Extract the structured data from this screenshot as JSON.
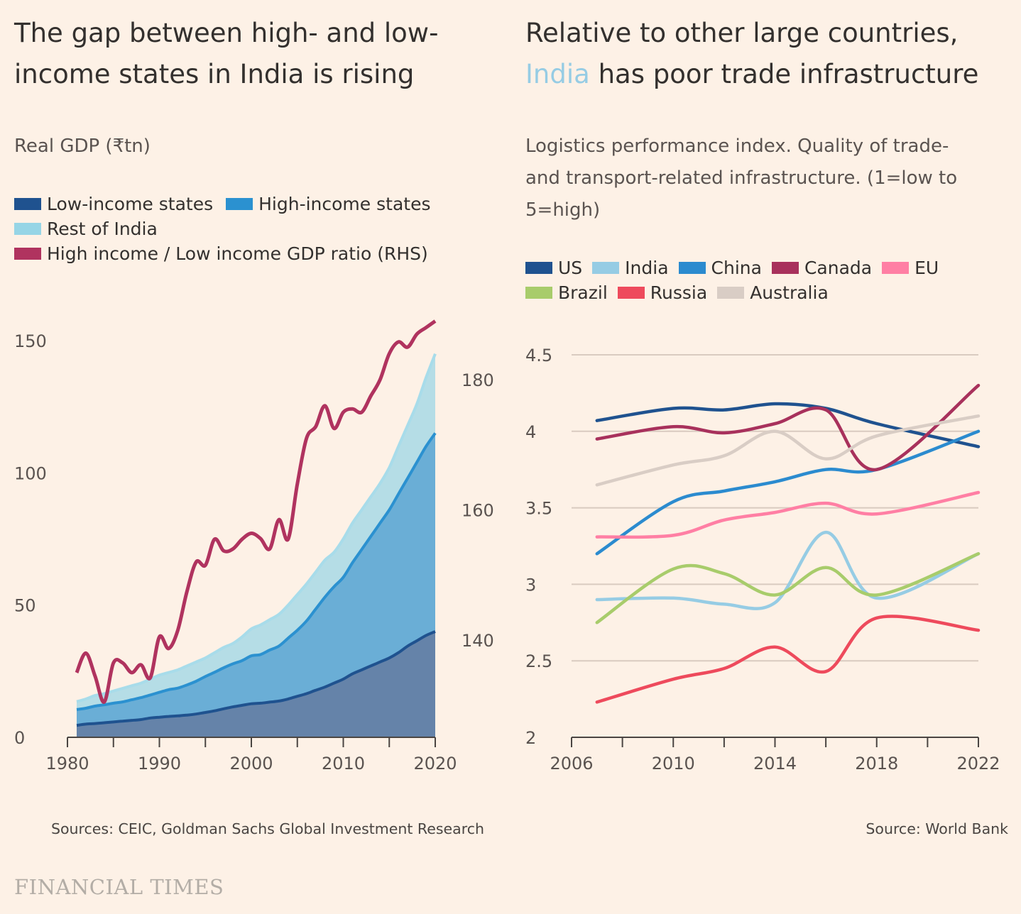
{
  "brand": "FINANCIAL TIMES",
  "charts": [
    {
      "title": "The gap between high- and low-income states in India is rising",
      "title_lines": [
        "The gap between high- and low-",
        "income states in India is rising"
      ],
      "subtitle": "Real GDP (₹tn)",
      "legend": [
        {
          "label": "Low-income states",
          "color": "#1f528f"
        },
        {
          "label": "High-income states",
          "color": "#2b91d0"
        },
        {
          "label": "Rest of India",
          "color": "#96d5e6"
        },
        {
          "label": "High income / Low income GDP ratio (RHS)",
          "color": "#b0335f"
        }
      ],
      "source": "Sources: CEIC, Goldman Sachs Global Investment Research"
    },
    {
      "title": "Relative to other large countries, India has poor trade infrastructure",
      "title_line1": "Relative to other large countries,",
      "title_line2_highlight": "India",
      "title_line2_rest": " has poor trade infrastructure",
      "subtitle_lines": [
        "Logistics performance index. Quality of trade-",
        "and transport-related infrastructure. (1=low to",
        "5=high)"
      ],
      "legend": [
        {
          "label": "US",
          "color": "#1f528f"
        },
        {
          "label": "India",
          "color": "#96cce4"
        },
        {
          "label": "China",
          "color": "#2b8bcf"
        },
        {
          "label": "Canada",
          "color": "#a8315c"
        },
        {
          "label": "EU",
          "color": "#ff7fa4"
        },
        {
          "label": "Brazil",
          "color": "#a8cc6b"
        },
        {
          "label": "Russia",
          "color": "#ee4a5c"
        },
        {
          "label": "Australia",
          "color": "#d9cdc5"
        }
      ],
      "source": "Source: World Bank"
    }
  ],
  "chart_data": [
    {
      "type": "area",
      "stacked": true,
      "title": "The gap between high- and low-income states in India is rising",
      "ylabel": "Real GDP (₹tn)",
      "x": [
        1981,
        1982,
        1983,
        1984,
        1985,
        1986,
        1987,
        1988,
        1989,
        1990,
        1991,
        1992,
        1993,
        1994,
        1995,
        1996,
        1997,
        1998,
        1999,
        2000,
        2001,
        2002,
        2003,
        2004,
        2005,
        2006,
        2007,
        2008,
        2009,
        2010,
        2011,
        2012,
        2013,
        2014,
        2015,
        2016,
        2017,
        2018,
        2019,
        2020
      ],
      "xlim": [
        1980,
        2020
      ],
      "xticks": [
        1980,
        1990,
        2000,
        2010,
        2020
      ],
      "ylim": [
        0,
        150
      ],
      "yticks": [
        0,
        50,
        100,
        150
      ],
      "y2lim": [
        130,
        180
      ],
      "y2ticks": [
        140,
        160,
        180
      ],
      "series": [
        {
          "name": "Low-income states",
          "color": "#1f528f",
          "axis": "left",
          "values": [
            4.5,
            5,
            5.2,
            5.5,
            5.8,
            6.1,
            6.4,
            6.7,
            7.3,
            7.6,
            7.9,
            8.1,
            8.4,
            8.8,
            9.4,
            10,
            10.8,
            11.5,
            12.1,
            12.7,
            12.9,
            13.3,
            13.7,
            14.5,
            15.5,
            16.5,
            17.8,
            19,
            20.5,
            22,
            24,
            25.5,
            27,
            28.5,
            30,
            32,
            34.5,
            36.5,
            38.5,
            40
          ]
        },
        {
          "name": "High-income states",
          "color": "#2b91d0",
          "axis": "left",
          "values": [
            10.5,
            11,
            11.8,
            12.3,
            12.9,
            13.4,
            14.2,
            15,
            16,
            17,
            18,
            18.6,
            19.8,
            21.2,
            23,
            24.6,
            26.3,
            27.8,
            29,
            30.8,
            31.3,
            33,
            34.5,
            37.5,
            40.5,
            44,
            48.5,
            53,
            57,
            60.5,
            66,
            71,
            76,
            81,
            86,
            92,
            98,
            104,
            110,
            115
          ]
        },
        {
          "name": "Rest of India",
          "color": "#96d5e6",
          "axis": "left",
          "values": [
            13.5,
            14.5,
            15.8,
            16.5,
            17.5,
            18.5,
            19.5,
            20.5,
            22,
            23.5,
            24.5,
            25.5,
            27,
            28.5,
            30,
            32,
            34,
            35.5,
            38,
            41,
            42.5,
            44.5,
            46.5,
            50,
            54,
            58,
            62.5,
            67,
            70,
            75,
            81,
            86,
            91,
            96,
            102,
            110,
            118,
            126,
            136,
            145
          ]
        },
        {
          "name": "High income / Low income GDP ratio (RHS)",
          "color": "#b0335f",
          "axis": "right",
          "values": [
            135,
            138,
            134.5,
            130.5,
            136.5,
            136.5,
            135,
            136.2,
            134.2,
            140.5,
            138.7,
            141.5,
            147.5,
            152,
            151.5,
            155.5,
            153.7,
            154,
            155.5,
            156.4,
            155.6,
            154,
            158.5,
            155.5,
            164,
            171,
            172.8,
            176,
            172.5,
            175,
            175.5,
            175,
            177.5,
            180,
            184,
            185.8,
            185,
            187,
            188,
            189
          ]
        }
      ]
    },
    {
      "type": "line",
      "title": "Relative to other large countries, India has poor trade infrastructure",
      "ylabel": "Logistics performance index. Quality of trade- and transport-related infrastructure. (1=low to 5=high)",
      "x": [
        2007,
        2010,
        2012,
        2014,
        2016,
        2018,
        2022
      ],
      "xlim": [
        2006,
        2022
      ],
      "xticks": [
        2006,
        2010,
        2014,
        2018,
        2022
      ],
      "ylim": [
        2,
        4.5
      ],
      "yticks": [
        2,
        2.5,
        3,
        3.5,
        4,
        4.5
      ],
      "grid": true,
      "series": [
        {
          "name": "US",
          "color": "#1f528f",
          "values": [
            4.07,
            4.15,
            4.14,
            4.18,
            4.15,
            4.05,
            3.9
          ]
        },
        {
          "name": "India",
          "color": "#96cce4",
          "values": [
            2.9,
            2.91,
            2.87,
            2.88,
            3.34,
            2.91,
            3.2
          ]
        },
        {
          "name": "China",
          "color": "#2b8bcf",
          "values": [
            3.2,
            3.54,
            3.61,
            3.67,
            3.75,
            3.75,
            4.0
          ]
        },
        {
          "name": "Canada",
          "color": "#a8315c",
          "values": [
            3.95,
            4.03,
            3.99,
            4.05,
            4.14,
            3.75,
            4.3
          ]
        },
        {
          "name": "EU",
          "color": "#ff7fa4",
          "values": [
            3.31,
            3.32,
            3.42,
            3.47,
            3.53,
            3.46,
            3.6
          ]
        },
        {
          "name": "Brazil",
          "color": "#a8cc6b",
          "values": [
            2.75,
            3.1,
            3.07,
            2.93,
            3.11,
            2.93,
            3.2
          ]
        },
        {
          "name": "Russia",
          "color": "#ee4a5c",
          "values": [
            2.23,
            2.38,
            2.45,
            2.59,
            2.43,
            2.78,
            2.7
          ]
        },
        {
          "name": "Australia",
          "color": "#d9cdc5",
          "values": [
            3.65,
            3.78,
            3.84,
            4.0,
            3.82,
            3.97,
            4.1
          ]
        }
      ]
    }
  ]
}
